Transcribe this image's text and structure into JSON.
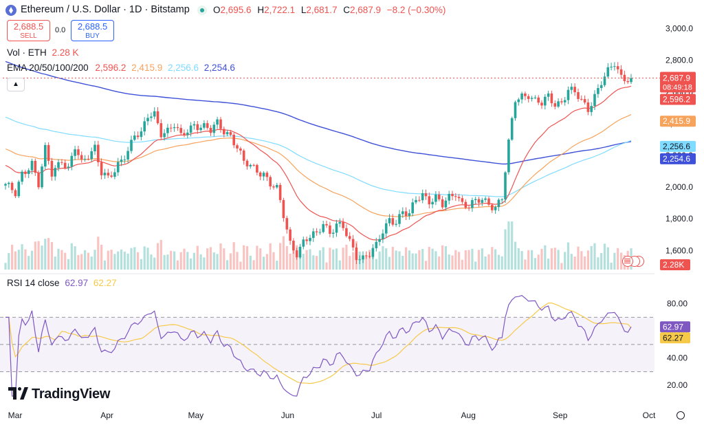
{
  "header": {
    "title": "Ethereum / U.S. Dollar · 1D · Bitstamp",
    "ohlc": [
      {
        "k": "O",
        "v": "2,695.6"
      },
      {
        "k": "H",
        "v": "2,722.1"
      },
      {
        "k": "L",
        "v": "2,681.7"
      },
      {
        "k": "C",
        "v": "2,687.9"
      },
      {
        "k": "",
        "v": "−8.2 (−0.30%)"
      }
    ],
    "sell_price": "2,688.5",
    "sell_label": "SELL",
    "spread": "0.0",
    "buy_price": "2,688.5",
    "buy_label": "BUY",
    "vol_label": "Vol · ETH",
    "vol_value": "2.28 K",
    "ema_label": "EMA 20/50/100/200",
    "ema_values": [
      "2,596.2",
      "2,415.9",
      "2,256.6",
      "2,254.6"
    ],
    "rsi_label": "RSI 14 close",
    "rsi_values": [
      "62.97",
      "62.27"
    ]
  },
  "brand": "TradingView",
  "colors": {
    "up": "#26a69a",
    "down": "#ef5350",
    "ema20": "#ef5350",
    "ema50": "#f7a35c",
    "ema100": "#7fdbff",
    "ema200": "#3f51d8",
    "rsi": "#7e57c2",
    "rsi_ma": "#f7c948"
  },
  "chart_data": {
    "type": "candlestick",
    "x_ticks": [
      "Mar",
      "Apr",
      "May",
      "Jun",
      "Jul",
      "Aug",
      "Sep",
      "Oct"
    ],
    "y_ticks": [
      "3,000.0",
      "2,800.0",
      "2,600.0",
      "2,400.0",
      "2,200.0",
      "2,000.0",
      "1,800.0",
      "1,600.0"
    ],
    "ylim": [
      1480,
      3050
    ],
    "price_anchors": [
      [
        0,
        2020
      ],
      [
        3,
        1950
      ],
      [
        5,
        2080
      ],
      [
        8,
        2160
      ],
      [
        10,
        2020
      ],
      [
        12,
        2230
      ],
      [
        14,
        2080
      ],
      [
        17,
        2180
      ],
      [
        19,
        2120
      ],
      [
        21,
        2250
      ],
      [
        23,
        2140
      ],
      [
        25,
        2200
      ],
      [
        27,
        2260
      ],
      [
        29,
        2100
      ],
      [
        31,
        2050
      ],
      [
        33,
        2090
      ],
      [
        35,
        2170
      ],
      [
        37,
        2240
      ],
      [
        39,
        2340
      ],
      [
        41,
        2330
      ],
      [
        43,
        2440
      ],
      [
        45,
        2460
      ],
      [
        47,
        2350
      ],
      [
        49,
        2360
      ],
      [
        51,
        2390
      ],
      [
        53,
        2310
      ],
      [
        55,
        2360
      ],
      [
        57,
        2400
      ],
      [
        60,
        2380
      ],
      [
        62,
        2350
      ],
      [
        64,
        2400
      ],
      [
        66,
        2360
      ],
      [
        68,
        2330
      ],
      [
        70,
        2250
      ],
      [
        72,
        2150
      ],
      [
        74,
        2130
      ],
      [
        76,
        2110
      ],
      [
        78,
        2090
      ],
      [
        80,
        2020
      ],
      [
        82,
        1980
      ],
      [
        84,
        1820
      ],
      [
        86,
        1650
      ],
      [
        88,
        1590
      ],
      [
        90,
        1650
      ],
      [
        92,
        1680
      ],
      [
        94,
        1700
      ],
      [
        96,
        1780
      ],
      [
        98,
        1720
      ],
      [
        100,
        1760
      ],
      [
        102,
        1740
      ],
      [
        104,
        1650
      ],
      [
        106,
        1570
      ],
      [
        108,
        1560
      ],
      [
        110,
        1580
      ],
      [
        112,
        1620
      ],
      [
        114,
        1720
      ],
      [
        116,
        1800
      ],
      [
        118,
        1790
      ],
      [
        120,
        1840
      ],
      [
        122,
        1820
      ],
      [
        124,
        1920
      ],
      [
        126,
        1960
      ],
      [
        128,
        1920
      ],
      [
        130,
        1930
      ],
      [
        132,
        1880
      ],
      [
        134,
        1930
      ],
      [
        136,
        1970
      ],
      [
        138,
        1900
      ],
      [
        140,
        1880
      ],
      [
        142,
        1900
      ],
      [
        144,
        1920
      ],
      [
        146,
        1900
      ],
      [
        148,
        1880
      ],
      [
        150,
        1930
      ],
      [
        152,
        2270
      ],
      [
        154,
        2550
      ],
      [
        156,
        2580
      ],
      [
        158,
        2590
      ],
      [
        160,
        2540
      ],
      [
        162,
        2520
      ],
      [
        164,
        2570
      ],
      [
        166,
        2530
      ],
      [
        168,
        2540
      ],
      [
        170,
        2610
      ],
      [
        172,
        2590
      ],
      [
        174,
        2540
      ],
      [
        176,
        2500
      ],
      [
        178,
        2580
      ],
      [
        180,
        2660
      ],
      [
        182,
        2720
      ],
      [
        184,
        2780
      ],
      [
        186,
        2700
      ],
      [
        188,
        2690
      ],
      [
        189,
        2688
      ]
    ],
    "ema_last": {
      "ema20": 2596.2,
      "ema50": 2415.9,
      "ema100": 2256.6,
      "ema200": 2254.6
    },
    "volume_label": "2.28K",
    "rsi": {
      "y_ticks": [
        "80.00",
        "60.00",
        "40.00",
        "20.00"
      ],
      "ylim": [
        10,
        95
      ],
      "band": [
        30,
        70
      ],
      "last_rsi": 62.97,
      "last_ma": 62.27
    },
    "last_price": "2,687.9",
    "countdown": "08:49:18",
    "price_labels": [
      "2,596.2",
      "2,415.9",
      "2,256.6",
      "2,254.6"
    ],
    "rsi_labels": [
      "62.97",
      "62.27"
    ],
    "grid": false,
    "legend": "top-left"
  }
}
